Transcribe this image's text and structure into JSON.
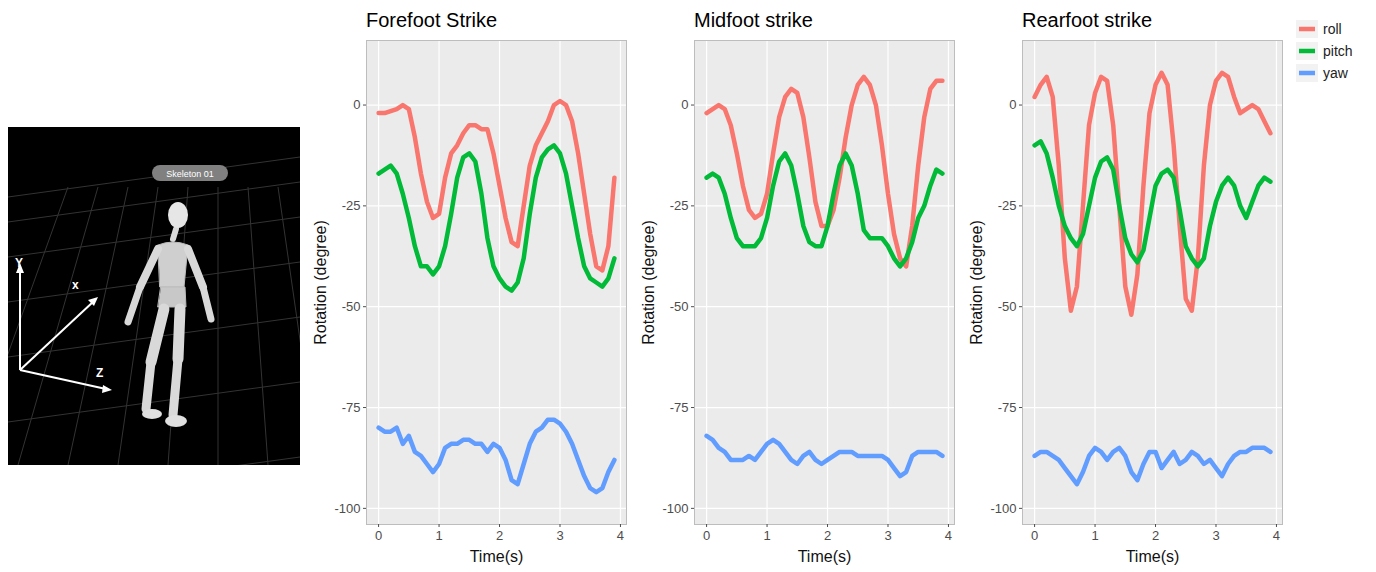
{
  "skeleton_view": {
    "label": "Skeleton 01",
    "axes": [
      "Y",
      "x",
      "Z"
    ]
  },
  "chart_data": [
    {
      "type": "line",
      "title": "Forefoot Strike",
      "x_label": "Time(s)",
      "y_label": "Rotation (degree)",
      "xlim": [
        -0.2,
        4.1
      ],
      "xticks": [
        0,
        1,
        2,
        3,
        4
      ],
      "ylim": [
        -104,
        16
      ],
      "yticks": [
        -100,
        -75,
        -50,
        -25,
        0
      ],
      "grid": true,
      "x": [
        0,
        0.1,
        0.2,
        0.3,
        0.4,
        0.5,
        0.6,
        0.7,
        0.8,
        0.9,
        1,
        1.1,
        1.2,
        1.3,
        1.4,
        1.5,
        1.6,
        1.7,
        1.8,
        1.9,
        2,
        2.1,
        2.2,
        2.3,
        2.4,
        2.5,
        2.6,
        2.7,
        2.8,
        2.9,
        3,
        3.1,
        3.2,
        3.3,
        3.4,
        3.5,
        3.6,
        3.7,
        3.8,
        3.9
      ],
      "series": [
        {
          "name": "roll",
          "color": "#F8766D",
          "values": [
            -2,
            -2,
            -1.5,
            -1,
            0,
            -1,
            -8,
            -17,
            -24,
            -28,
            -27,
            -18,
            -12,
            -10,
            -7,
            -5,
            -5,
            -6,
            -6,
            -12,
            -20,
            -28,
            -34,
            -35,
            -25,
            -15,
            -10,
            -7,
            -4,
            0,
            1,
            0,
            -4,
            -12,
            -22,
            -32,
            -40,
            -41,
            -35,
            -18
          ]
        },
        {
          "name": "pitch",
          "color": "#00BA38",
          "values": [
            -17,
            -16,
            -15,
            -17,
            -22,
            -28,
            -35,
            -40,
            -40,
            -42,
            -40,
            -35,
            -27,
            -18,
            -13,
            -12,
            -14,
            -22,
            -33,
            -40,
            -43,
            -45,
            -46,
            -44,
            -38,
            -27,
            -18,
            -13,
            -11,
            -10,
            -12,
            -17,
            -25,
            -33,
            -40,
            -43,
            -44,
            -45,
            -43,
            -38
          ]
        },
        {
          "name": "yaw",
          "color": "#619CFF",
          "values": [
            -80,
            -81,
            -81,
            -80,
            -84,
            -82,
            -86,
            -87,
            -89,
            -91,
            -89,
            -85,
            -84,
            -84,
            -83,
            -83,
            -84,
            -84,
            -86,
            -84,
            -85,
            -88,
            -93,
            -94,
            -89,
            -84,
            -81,
            -80,
            -78,
            -78,
            -79,
            -81,
            -84,
            -88,
            -92,
            -95,
            -96,
            -95,
            -91,
            -88
          ]
        }
      ]
    },
    {
      "type": "line",
      "title": "Midfoot strike",
      "x_label": "Time(s)",
      "y_label": "Rotation (degree)",
      "xlim": [
        -0.2,
        4.1
      ],
      "xticks": [
        0,
        1,
        2,
        3,
        4
      ],
      "ylim": [
        -104,
        16
      ],
      "yticks": [
        -100,
        -75,
        -50,
        -25,
        0
      ],
      "grid": true,
      "x": [
        0,
        0.1,
        0.2,
        0.3,
        0.4,
        0.5,
        0.6,
        0.7,
        0.8,
        0.9,
        1,
        1.1,
        1.2,
        1.3,
        1.4,
        1.5,
        1.6,
        1.7,
        1.8,
        1.9,
        2,
        2.1,
        2.2,
        2.3,
        2.4,
        2.5,
        2.6,
        2.7,
        2.8,
        2.9,
        3,
        3.1,
        3.2,
        3.3,
        3.4,
        3.5,
        3.6,
        3.7,
        3.8,
        3.9
      ],
      "series": [
        {
          "name": "roll",
          "color": "#F8766D",
          "values": [
            -2,
            -1,
            0,
            -1,
            -5,
            -12,
            -20,
            -26,
            -28,
            -27,
            -22,
            -12,
            -3,
            2,
            4,
            3,
            -3,
            -13,
            -24,
            -30,
            -30,
            -26,
            -18,
            -8,
            0,
            5,
            7,
            5,
            0,
            -10,
            -22,
            -32,
            -38,
            -40,
            -30,
            -15,
            -3,
            4,
            6,
            6
          ]
        },
        {
          "name": "pitch",
          "color": "#00BA38",
          "values": [
            -18,
            -17,
            -18,
            -22,
            -28,
            -33,
            -35,
            -35,
            -35,
            -33,
            -28,
            -20,
            -14,
            -12,
            -15,
            -22,
            -30,
            -34,
            -35,
            -35,
            -30,
            -22,
            -15,
            -12,
            -15,
            -22,
            -31,
            -33,
            -33,
            -33,
            -35,
            -38,
            -40,
            -38,
            -34,
            -28,
            -25,
            -20,
            -16,
            -17
          ]
        },
        {
          "name": "yaw",
          "color": "#619CFF",
          "values": [
            -82,
            -83,
            -85,
            -86,
            -88,
            -88,
            -88,
            -87,
            -88,
            -86,
            -84,
            -83,
            -84,
            -86,
            -88,
            -89,
            -87,
            -86,
            -88,
            -89,
            -88,
            -87,
            -86,
            -86,
            -86,
            -87,
            -87,
            -87,
            -87,
            -87,
            -88,
            -90,
            -92,
            -91,
            -87,
            -86,
            -86,
            -86,
            -86,
            -87
          ]
        }
      ]
    },
    {
      "type": "line",
      "title": "Rearfoot strike",
      "x_label": "Time(s)",
      "y_label": "Rotation (degree)",
      "xlim": [
        -0.2,
        4.1
      ],
      "xticks": [
        0,
        1,
        2,
        3,
        4
      ],
      "ylim": [
        -104,
        16
      ],
      "yticks": [
        -100,
        -75,
        -50,
        -25,
        0
      ],
      "grid": true,
      "legend": "right",
      "x": [
        0,
        0.1,
        0.2,
        0.3,
        0.4,
        0.5,
        0.6,
        0.7,
        0.8,
        0.9,
        1,
        1.1,
        1.2,
        1.3,
        1.4,
        1.5,
        1.6,
        1.7,
        1.8,
        1.9,
        2,
        2.1,
        2.2,
        2.3,
        2.4,
        2.5,
        2.6,
        2.7,
        2.8,
        2.9,
        3,
        3.1,
        3.2,
        3.3,
        3.4,
        3.5,
        3.6,
        3.7,
        3.8,
        3.9
      ],
      "series": [
        {
          "name": "roll",
          "color": "#F8766D",
          "values": [
            2,
            5,
            7,
            2,
            -15,
            -38,
            -51,
            -45,
            -25,
            -5,
            3,
            7,
            6,
            -5,
            -25,
            -45,
            -52,
            -42,
            -20,
            -2,
            5,
            8,
            5,
            -10,
            -30,
            -48,
            -51,
            -38,
            -15,
            0,
            6,
            8,
            7,
            2,
            -2,
            -1,
            0,
            -1,
            -4,
            -7
          ]
        },
        {
          "name": "pitch",
          "color": "#00BA38",
          "values": [
            -10,
            -9,
            -12,
            -18,
            -25,
            -30,
            -33,
            -35,
            -32,
            -25,
            -18,
            -14,
            -13,
            -16,
            -25,
            -33,
            -37,
            -39,
            -36,
            -28,
            -20,
            -17,
            -16,
            -18,
            -26,
            -35,
            -38,
            -40,
            -38,
            -30,
            -24,
            -20,
            -18,
            -20,
            -25,
            -28,
            -24,
            -20,
            -18,
            -19
          ]
        },
        {
          "name": "yaw",
          "color": "#619CFF",
          "values": [
            -87,
            -86,
            -86,
            -87,
            -88,
            -90,
            -92,
            -94,
            -91,
            -87,
            -85,
            -86,
            -88,
            -86,
            -85,
            -87,
            -91,
            -93,
            -89,
            -86,
            -86,
            -90,
            -88,
            -86,
            -89,
            -88,
            -86,
            -87,
            -89,
            -88,
            -90,
            -92,
            -89,
            -87,
            -86,
            -86,
            -85,
            -85,
            -85,
            -86
          ]
        }
      ]
    }
  ]
}
